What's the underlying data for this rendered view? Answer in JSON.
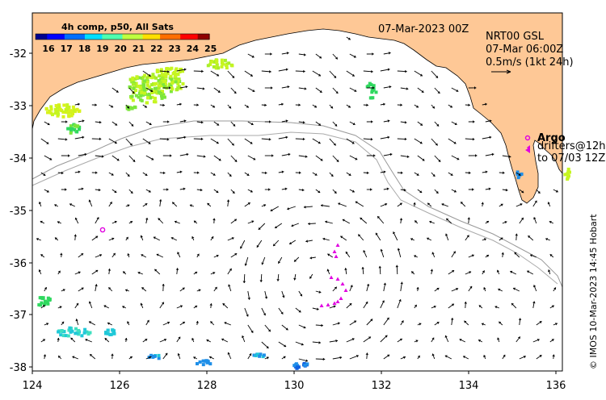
{
  "header": {
    "datetime": "07-Mar-2023 00Z",
    "product": "NRT00 GSL",
    "valid_time": "07-Mar 06:00Z",
    "scale_text": "0.5m/s (1kt 24h)"
  },
  "colorbar": {
    "title": "4h comp, p50, All Sats",
    "ticks": [
      "16",
      "17",
      "18",
      "19",
      "20",
      "21",
      "22",
      "23",
      "24",
      "25"
    ],
    "colors": [
      "#00008f",
      "#0000ff",
      "#006fff",
      "#00dfff",
      "#4fffaf",
      "#bfff3f",
      "#ffdf00",
      "#ff6f00",
      "#ff0000",
      "#8f0000"
    ]
  },
  "legend": {
    "argo_label": "Argo",
    "drifters_label": "drifters@12h",
    "drifters_to": "to 07/03 12Z"
  },
  "credit": "© IMOS 10-Mar-2023 14:45 Hobart",
  "axes": {
    "x_ticks": [
      "124",
      "126",
      "128",
      "130",
      "132",
      "134",
      "136"
    ],
    "y_ticks": [
      "-32",
      "-33",
      "-34",
      "-35",
      "-36",
      "-37",
      "-38"
    ]
  },
  "colors": {
    "land": "#fec896",
    "sst_warm": "#c6f520",
    "sst_mid": "#7ce63c",
    "sst_green": "#2fd85f",
    "sst_cool": "#20c8d8",
    "sst_blue": "#1f8fe8",
    "argo": "#e000e0",
    "drifter": "#e000e0",
    "isobath": "#999999"
  }
}
